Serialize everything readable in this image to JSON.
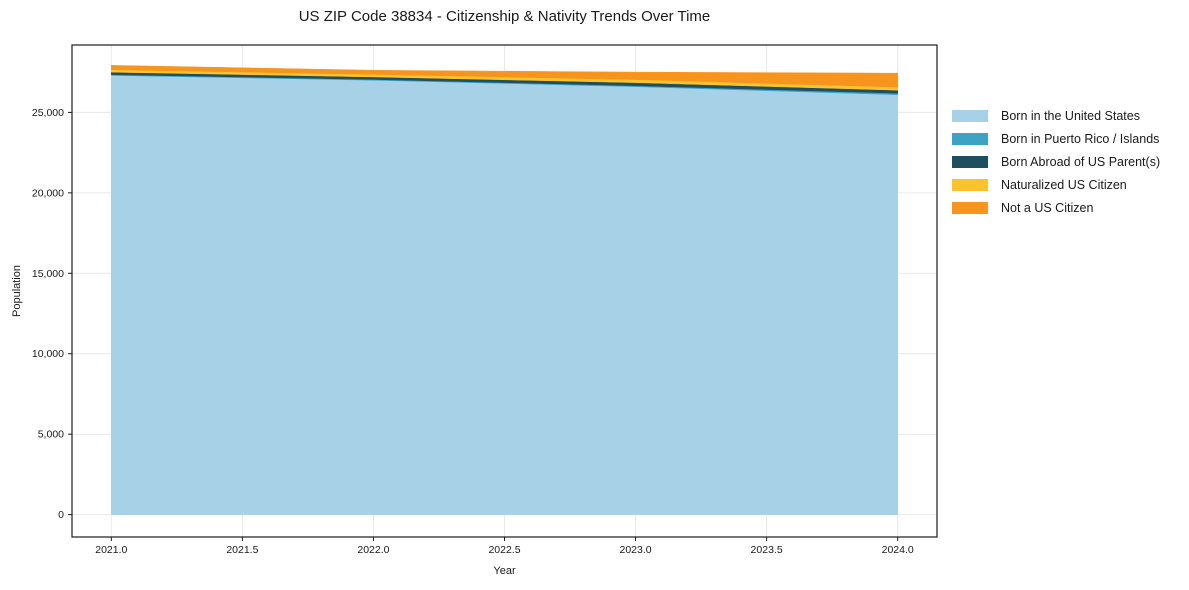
{
  "chart_data": {
    "type": "area",
    "stacked": true,
    "title": "US ZIP Code 38834 - Citizenship & Nativity Trends Over Time",
    "xlabel": "Year",
    "ylabel": "Population",
    "x": [
      2021,
      2022,
      2023,
      2024
    ],
    "series": [
      {
        "name": "Born in the United States",
        "color": "#a6d1e6",
        "values": [
          27300,
          27000,
          26600,
          26100
        ]
      },
      {
        "name": "Born in Puerto Rico / Islands",
        "color": "#3ca3c4",
        "values": [
          50,
          50,
          60,
          90
        ]
      },
      {
        "name": "Born Abroad of US Parent(s)",
        "color": "#1f4e5f",
        "values": [
          150,
          155,
          190,
          190
        ]
      },
      {
        "name": "Naturalized US Citizen",
        "color": "#fcc32f",
        "values": [
          155,
          155,
          190,
          190
        ]
      },
      {
        "name": "Not a US Citizen",
        "color": "#f7941e",
        "values": [
          270,
          260,
          465,
          870
        ]
      }
    ],
    "xlim": [
      2020.85,
      2024.15
    ],
    "ylim": [
      -1390,
      29190
    ],
    "x_ticks": {
      "values": [
        2021.0,
        2021.5,
        2022.0,
        2022.5,
        2023.0,
        2023.5,
        2024.0
      ],
      "labels": [
        "2021.0",
        "2021.5",
        "2022.0",
        "2022.5",
        "2023.0",
        "2023.5",
        "2024.0"
      ]
    },
    "y_ticks": {
      "values": [
        0,
        5000,
        10000,
        15000,
        20000,
        25000
      ],
      "labels": [
        "0",
        "5,000",
        "10,000",
        "15,000",
        "20,000",
        "25,000"
      ]
    },
    "grid": true,
    "grid_color": "#e9e9e9",
    "spine_color": "#1c1c1c",
    "text_color": "#1a1a1a",
    "background_color": "#ffffff",
    "legend_position": "right"
  }
}
